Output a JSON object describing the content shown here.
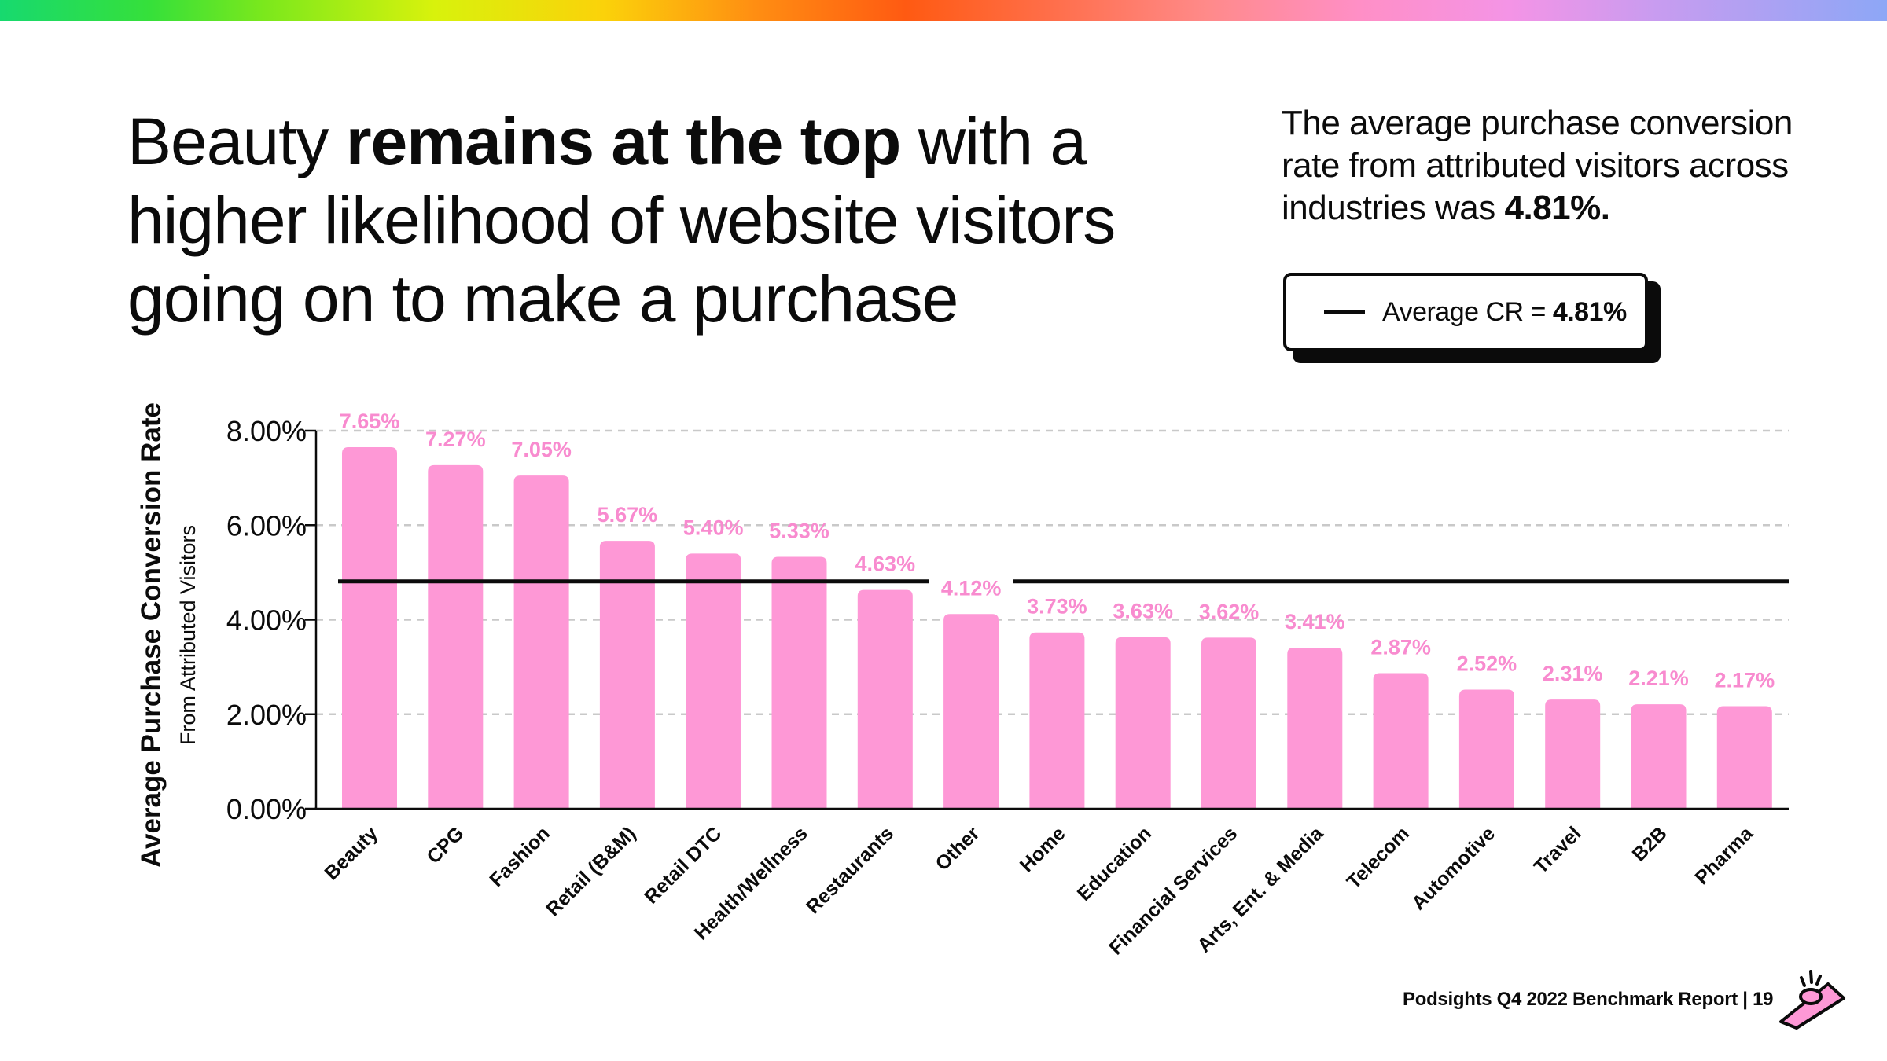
{
  "headline": {
    "part1": "Beauty ",
    "bold": "remains at the top",
    "part2": " with a higher likelihood of website visitors going on to make a purchase"
  },
  "summary": {
    "text": "The average purchase conversion rate from attributed visitors across industries was ",
    "value": "4.81%."
  },
  "legend": {
    "label": "Average CR = ",
    "value": "4.81%"
  },
  "footer": {
    "text": "Podsights Q4 2022 Benchmark Report | 19"
  },
  "colors": {
    "bar": "#fe98d6",
    "label": "#f88bcf",
    "axis": "#0b0b0b",
    "grid": "#c9c9c9"
  },
  "chart_data": {
    "type": "bar",
    "title": "",
    "ylabel": "Average Purchase Conversion Rate",
    "ylabel_sub": "From Attributed Visitors",
    "xlabel": "",
    "ylim": [
      0,
      8
    ],
    "yticks": [
      0,
      2,
      4,
      6,
      8
    ],
    "ytick_labels": [
      "0.00%",
      "2.00%",
      "4.00%",
      "6.00%",
      "8.00%"
    ],
    "grid": true,
    "categories": [
      "Beauty",
      "CPG",
      "Fashion",
      "Retail (B&M)",
      "Retail DTC",
      "Health/Wellness",
      "Restaurants",
      "Other",
      "Home",
      "Education",
      "Financial Services",
      "Arts, Ent. & Media",
      "Telecom",
      "Automotive",
      "Travel",
      "B2B",
      "Pharma"
    ],
    "values": [
      7.65,
      7.27,
      7.05,
      5.67,
      5.4,
      5.33,
      4.63,
      4.12,
      3.73,
      3.63,
      3.62,
      3.41,
      2.87,
      2.52,
      2.31,
      2.21,
      2.17
    ],
    "value_labels": [
      "7.65%",
      "7.27%",
      "7.05%",
      "5.67%",
      "5.40%",
      "5.33%",
      "4.63%",
      "4.12%",
      "3.73%",
      "3.63%",
      "3.62%",
      "3.41%",
      "2.87%",
      "2.52%",
      "2.31%",
      "2.21%",
      "2.17%"
    ],
    "reference_line": {
      "name": "Average CR",
      "value": 4.81
    }
  }
}
